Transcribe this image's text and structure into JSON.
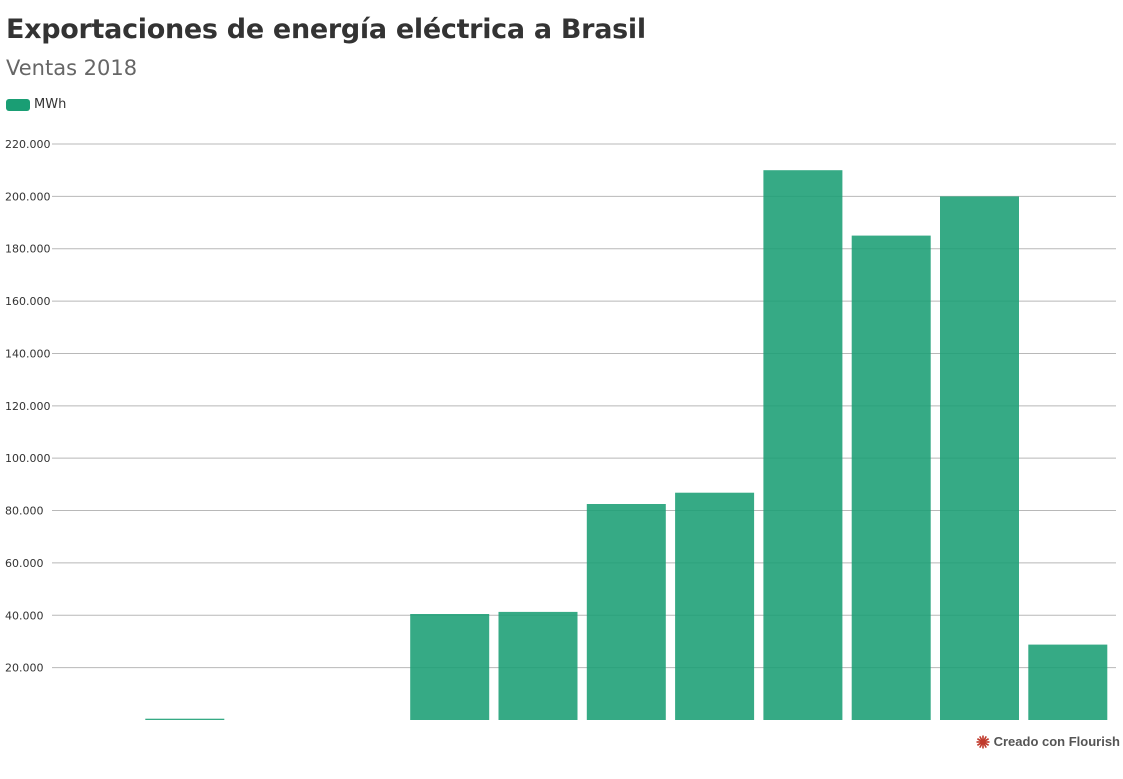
{
  "chart_data": {
    "type": "bar",
    "title": "Exportaciones de energía eléctrica a Brasil",
    "subtitle": "Ventas 2018",
    "xlabel": "",
    "ylabel": "",
    "ylim": [
      0,
      220000
    ],
    "yticks": [
      20000,
      40000,
      60000,
      80000,
      100000,
      120000,
      140000,
      160000,
      180000,
      200000,
      220000
    ],
    "ytick_labels": [
      "20.000",
      "40.000",
      "60.000",
      "80.000",
      "100.000",
      "120.000",
      "140.000",
      "160.000",
      "180.000",
      "200.000",
      "220.000"
    ],
    "grid": true,
    "legend_position": "top-left",
    "series": [
      {
        "name": "MWh",
        "color": "#1a9e74",
        "values": [
          0,
          500,
          0,
          0,
          40500,
          41300,
          82500,
          86800,
          210000,
          185000,
          200000,
          28800
        ]
      }
    ]
  },
  "footer": {
    "credit": "Creado con Flourish",
    "icon": "flourish-logo-icon"
  }
}
